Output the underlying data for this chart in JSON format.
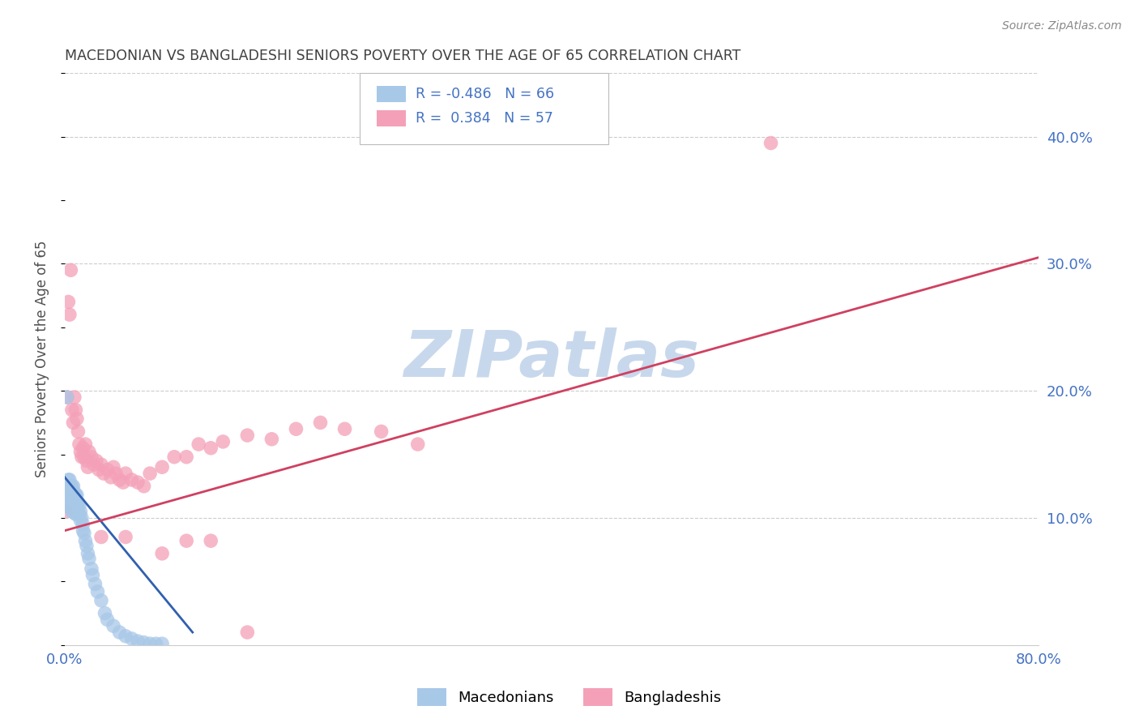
{
  "title": "MACEDONIAN VS BANGLADESHI SENIORS POVERTY OVER THE AGE OF 65 CORRELATION CHART",
  "source": "Source: ZipAtlas.com",
  "ylabel": "Seniors Poverty Over the Age of 65",
  "xlim": [
    0.0,
    0.8
  ],
  "ylim": [
    0.0,
    0.45
  ],
  "xticks": [
    0.0,
    0.1,
    0.2,
    0.3,
    0.4,
    0.5,
    0.6,
    0.7,
    0.8
  ],
  "xtick_labels": [
    "0.0%",
    "",
    "",
    "",
    "",
    "",
    "",
    "",
    "80.0%"
  ],
  "yticks_right": [
    0.1,
    0.2,
    0.3,
    0.4
  ],
  "ytick_labels_right": [
    "10.0%",
    "20.0%",
    "30.0%",
    "40.0%"
  ],
  "mac_R": -0.486,
  "mac_N": 66,
  "ban_R": 0.384,
  "ban_N": 57,
  "mac_color": "#a8c8e8",
  "ban_color": "#f4a0b8",
  "mac_line_color": "#3060b0",
  "ban_line_color": "#d04060",
  "watermark": "ZIPatlas",
  "watermark_color": "#c8d8ec",
  "legend_label_mac": "Macedonians",
  "legend_label_ban": "Bangladeshis",
  "legend_text_color": "#4472c4",
  "axis_label_color": "#4472c4",
  "title_color": "#404040",
  "mac_trend_x0": 0.0,
  "mac_trend_x1": 0.105,
  "mac_trend_y0": 0.132,
  "mac_trend_y1": 0.01,
  "ban_trend_x0": 0.0,
  "ban_trend_x1": 0.8,
  "ban_trend_y0": 0.09,
  "ban_trend_y1": 0.305,
  "mac_x": [
    0.001,
    0.002,
    0.002,
    0.003,
    0.003,
    0.003,
    0.004,
    0.004,
    0.004,
    0.004,
    0.005,
    0.005,
    0.005,
    0.005,
    0.006,
    0.006,
    0.006,
    0.006,
    0.006,
    0.007,
    0.007,
    0.007,
    0.007,
    0.007,
    0.008,
    0.008,
    0.008,
    0.008,
    0.009,
    0.009,
    0.009,
    0.009,
    0.01,
    0.01,
    0.01,
    0.01,
    0.011,
    0.011,
    0.012,
    0.012,
    0.013,
    0.013,
    0.014,
    0.015,
    0.015,
    0.016,
    0.017,
    0.018,
    0.019,
    0.02,
    0.022,
    0.023,
    0.025,
    0.027,
    0.03,
    0.033,
    0.035,
    0.04,
    0.045,
    0.05,
    0.055,
    0.06,
    0.065,
    0.07,
    0.075,
    0.08
  ],
  "mac_y": [
    0.11,
    0.195,
    0.115,
    0.13,
    0.12,
    0.115,
    0.13,
    0.125,
    0.12,
    0.115,
    0.125,
    0.12,
    0.115,
    0.11,
    0.125,
    0.12,
    0.115,
    0.11,
    0.105,
    0.125,
    0.118,
    0.112,
    0.108,
    0.105,
    0.12,
    0.115,
    0.11,
    0.105,
    0.118,
    0.112,
    0.108,
    0.103,
    0.118,
    0.112,
    0.108,
    0.103,
    0.112,
    0.105,
    0.11,
    0.103,
    0.105,
    0.098,
    0.1,
    0.095,
    0.09,
    0.088,
    0.082,
    0.078,
    0.072,
    0.068,
    0.06,
    0.055,
    0.048,
    0.042,
    0.035,
    0.025,
    0.02,
    0.015,
    0.01,
    0.007,
    0.005,
    0.003,
    0.002,
    0.001,
    0.001,
    0.001
  ],
  "ban_x": [
    0.001,
    0.002,
    0.003,
    0.004,
    0.005,
    0.006,
    0.007,
    0.008,
    0.009,
    0.01,
    0.011,
    0.012,
    0.013,
    0.014,
    0.015,
    0.016,
    0.017,
    0.018,
    0.019,
    0.02,
    0.022,
    0.024,
    0.026,
    0.028,
    0.03,
    0.032,
    0.035,
    0.038,
    0.04,
    0.042,
    0.045,
    0.048,
    0.05,
    0.055,
    0.06,
    0.065,
    0.07,
    0.08,
    0.09,
    0.1,
    0.11,
    0.12,
    0.13,
    0.15,
    0.17,
    0.19,
    0.21,
    0.23,
    0.26,
    0.29,
    0.03,
    0.05,
    0.08,
    0.1,
    0.12,
    0.15,
    0.58
  ],
  "ban_y": [
    0.105,
    0.195,
    0.27,
    0.26,
    0.295,
    0.185,
    0.175,
    0.195,
    0.185,
    0.178,
    0.168,
    0.158,
    0.152,
    0.148,
    0.155,
    0.148,
    0.158,
    0.145,
    0.14,
    0.152,
    0.148,
    0.142,
    0.145,
    0.138,
    0.142,
    0.135,
    0.138,
    0.132,
    0.14,
    0.135,
    0.13,
    0.128,
    0.135,
    0.13,
    0.128,
    0.125,
    0.135,
    0.14,
    0.148,
    0.148,
    0.158,
    0.155,
    0.16,
    0.165,
    0.162,
    0.17,
    0.175,
    0.17,
    0.168,
    0.158,
    0.085,
    0.085,
    0.072,
    0.082,
    0.082,
    0.01,
    0.395
  ]
}
